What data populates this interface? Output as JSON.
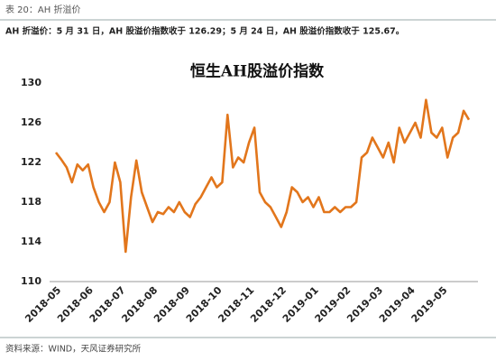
{
  "header": "表 20：AH 折溢价",
  "summary": "AH 折溢价：5 月 31 日，AH 股溢价指数收于 126.29；5 月 24 日，AH 股溢价指数收于 125.67。",
  "source": "资料来源：WIND，天风证券研究所",
  "chart_data": {
    "type": "line",
    "title": "恒生AH股溢价指数",
    "categories": [
      "2018-05",
      null,
      null,
      null,
      null,
      null,
      "2018-06",
      null,
      null,
      null,
      null,
      null,
      "2018-07",
      null,
      null,
      null,
      null,
      null,
      "2018-08",
      null,
      null,
      null,
      null,
      null,
      "2018-09",
      null,
      null,
      null,
      null,
      null,
      "2018-10",
      null,
      null,
      null,
      null,
      null,
      "2018-11",
      null,
      null,
      null,
      null,
      null,
      "2018-12",
      null,
      null,
      null,
      null,
      null,
      "2019-01",
      null,
      null,
      null,
      null,
      null,
      "2019-02",
      null,
      null,
      null,
      null,
      null,
      "2019-03",
      null,
      null,
      null,
      null,
      null,
      "2019-04",
      null,
      null,
      null,
      null,
      null,
      "2019-05",
      null,
      null,
      null,
      null,
      null
    ],
    "series": [
      {
        "name": "AH股溢价指数",
        "color": "#e2761c",
        "values": [
          123,
          122.3,
          121.5,
          120,
          121.8,
          121.2,
          121.8,
          119.5,
          118,
          117,
          118,
          122,
          120,
          113,
          118.5,
          122.2,
          119,
          117.5,
          116,
          117,
          116.8,
          117.5,
          117,
          118,
          117,
          116.5,
          117.8,
          118.5,
          119.5,
          120.5,
          119.5,
          120,
          126.8,
          121.5,
          122.5,
          122,
          124,
          125.5,
          119,
          118,
          117.5,
          116.5,
          115.5,
          117,
          119.5,
          119,
          118,
          118.5,
          117.5,
          118.5,
          117,
          117,
          117.5,
          117,
          117.5,
          117.5,
          118,
          122.5,
          123,
          124.5,
          123.5,
          122.5,
          124,
          122,
          125.5,
          124,
          125,
          126,
          124.5,
          128.3,
          125,
          124.5,
          125.5,
          122.5,
          124.5,
          125,
          127.2,
          126.3
        ]
      }
    ],
    "ylim": [
      110,
      130
    ],
    "yticks": [
      110,
      114,
      118,
      122,
      126,
      130
    ],
    "grid": false
  }
}
